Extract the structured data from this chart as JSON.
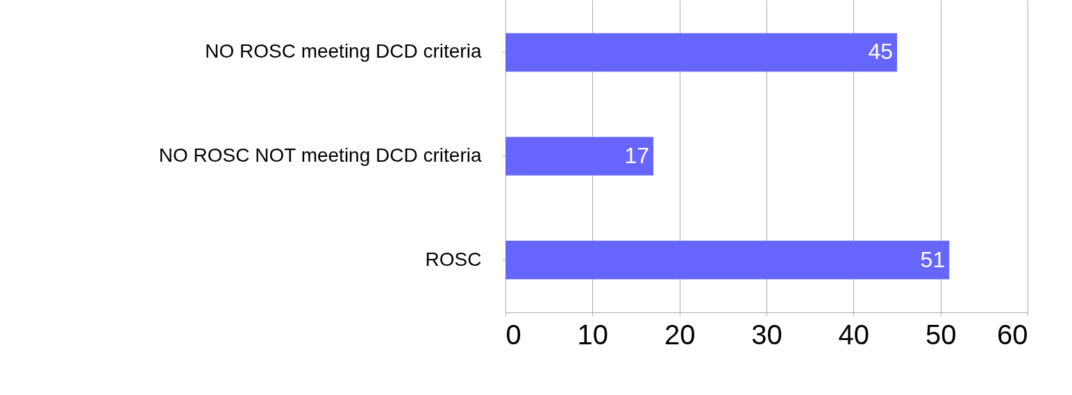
{
  "chart_data": {
    "type": "bar",
    "orientation": "horizontal",
    "categories": [
      "NO ROSC meeting DCD criteria",
      "NO ROSC NOT meeting DCD criteria",
      "ROSC"
    ],
    "values": [
      45,
      17,
      51
    ],
    "color": "#6666ff",
    "xlim": [
      0,
      60
    ],
    "xticks": [
      0,
      10,
      20,
      30,
      40,
      50,
      60
    ],
    "grid": "x",
    "data_labels": true
  }
}
